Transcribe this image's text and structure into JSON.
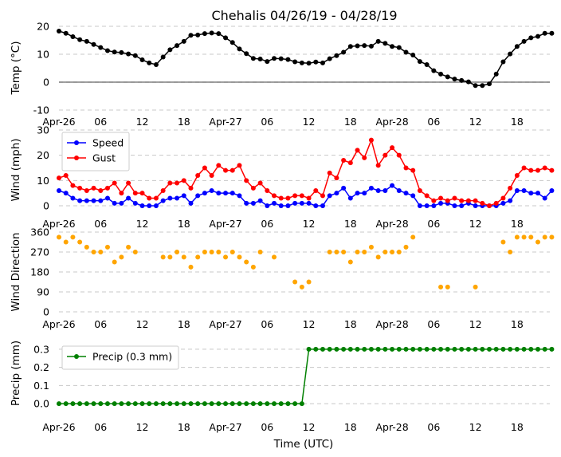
{
  "title": "Chehalis 04/26/19 - 04/28/19",
  "xlabel": "Time (UTC)",
  "x_tick_labels": [
    "Apr-26",
    "06",
    "12",
    "18",
    "Apr-27",
    "06",
    "12",
    "18",
    "Apr-28",
    "06",
    "12",
    "18"
  ],
  "chart_data": [
    {
      "type": "line",
      "name": "temperature",
      "ylabel": "Temp (°C)",
      "x_unit": "hours since Apr-26 00 UTC",
      "ylim": [
        -10,
        20
      ],
      "yticks": [
        "-10",
        "0",
        "10",
        "20"
      ],
      "zero_line": true,
      "grid": true,
      "series": [
        {
          "name": "Temp",
          "color": "#000000",
          "values": [
            18.3,
            17.5,
            16.3,
            15.2,
            14.6,
            13.5,
            12.4,
            11.3,
            10.8,
            10.6,
            10.1,
            9.5,
            8.0,
            6.9,
            6.3,
            9.0,
            11.6,
            13.1,
            14.6,
            16.8,
            16.9,
            17.4,
            17.6,
            17.4,
            15.9,
            14.2,
            11.9,
            10.2,
            8.5,
            8.3,
            7.4,
            8.5,
            8.4,
            8.1,
            7.3,
            6.9,
            6.8,
            7.2,
            6.9,
            8.4,
            9.5,
            10.7,
            12.8,
            13.0,
            13.1,
            12.9,
            14.6,
            13.9,
            12.8,
            12.4,
            10.7,
            9.7,
            7.4,
            6.3,
            4.1,
            2.9,
            1.9,
            1.1,
            0.6,
            0.1,
            -1.2,
            -1.2,
            -0.6,
            2.9,
            7.3,
            10.1,
            12.8,
            14.6,
            15.9,
            16.4,
            17.5,
            17.5
          ]
        }
      ]
    },
    {
      "type": "line",
      "name": "wind",
      "ylabel": "Wind (mph)",
      "ylim": [
        0,
        30
      ],
      "yticks": [
        "0",
        "10",
        "20",
        "30"
      ],
      "grid": true,
      "legend": "top-left",
      "series": [
        {
          "name": "Speed",
          "color": "#0000ff",
          "values": [
            6,
            5,
            3,
            2,
            2,
            2,
            2,
            3,
            1,
            1,
            3,
            1,
            0,
            0,
            0,
            2,
            3,
            3,
            4,
            1,
            4,
            5,
            6,
            5,
            5,
            5,
            4,
            1,
            1,
            2,
            0,
            1,
            0,
            0,
            1,
            1,
            1,
            0,
            0,
            4,
            5,
            7,
            3,
            5,
            5,
            7,
            6,
            6,
            8,
            6,
            5,
            4,
            0,
            0,
            0,
            1,
            1,
            0,
            0,
            1,
            0,
            0,
            0,
            0,
            1,
            2,
            6,
            6,
            5,
            5,
            3,
            6
          ]
        },
        {
          "name": "Gust",
          "color": "#ff0000",
          "values": [
            11,
            12,
            8,
            7,
            6,
            7,
            6,
            7,
            9,
            5,
            9,
            5,
            5,
            3,
            3,
            6,
            9,
            9,
            10,
            7,
            12,
            15,
            12,
            16,
            14,
            14,
            16,
            10,
            7,
            9,
            6,
            4,
            3,
            3,
            4,
            4,
            3,
            6,
            4,
            13,
            11,
            18,
            17,
            22,
            19,
            26,
            16,
            20,
            23,
            20,
            15,
            14,
            6,
            4,
            2,
            3,
            2,
            3,
            2,
            2,
            2,
            1,
            0,
            1,
            3,
            7,
            12,
            15,
            14,
            14,
            15,
            14
          ]
        }
      ]
    },
    {
      "type": "scatter",
      "name": "wind-direction",
      "ylabel": "Wind Direction",
      "ylim": [
        0,
        360
      ],
      "yticks": [
        "0",
        "90",
        "180",
        "270",
        "360"
      ],
      "grid": true,
      "series": [
        {
          "name": "Direction",
          "color": "#ffa500",
          "values": [
            337,
            315,
            337,
            315,
            292,
            270,
            270,
            292,
            225,
            247,
            292,
            270,
            null,
            null,
            null,
            247,
            247,
            270,
            247,
            202,
            247,
            270,
            270,
            270,
            247,
            270,
            247,
            225,
            202,
            270,
            null,
            247,
            null,
            null,
            135,
            112,
            135,
            null,
            null,
            270,
            270,
            270,
            225,
            270,
            270,
            292,
            247,
            270,
            270,
            270,
            292,
            337,
            null,
            null,
            null,
            112,
            112,
            null,
            null,
            null,
            112,
            null,
            null,
            null,
            315,
            270,
            337,
            337,
            337,
            315,
            337,
            337
          ]
        }
      ]
    },
    {
      "type": "line",
      "name": "precipitation",
      "ylabel": "Precip (mm)",
      "ylim": [
        -0.03,
        0.33
      ],
      "yticks": [
        "0.0",
        "0.1",
        "0.2",
        "0.3"
      ],
      "grid": true,
      "legend": "top-left",
      "series": [
        {
          "name": "Precip (0.3 mm)",
          "color": "#008000",
          "values": [
            0,
            0,
            0,
            0,
            0,
            0,
            0,
            0,
            0,
            0,
            0,
            0,
            0,
            0,
            0,
            0,
            0,
            0,
            0,
            0,
            0,
            0,
            0,
            0,
            0,
            0,
            0,
            0,
            0,
            0,
            0,
            0,
            0,
            0,
            0,
            0,
            0.3,
            0.3,
            0.3,
            0.3,
            0.3,
            0.3,
            0.3,
            0.3,
            0.3,
            0.3,
            0.3,
            0.3,
            0.3,
            0.3,
            0.3,
            0.3,
            0.3,
            0.3,
            0.3,
            0.3,
            0.3,
            0.3,
            0.3,
            0.3,
            0.3,
            0.3,
            0.3,
            0.3,
            0.3,
            0.3,
            0.3,
            0.3,
            0.3,
            0.3,
            0.3,
            0.3
          ]
        }
      ]
    }
  ]
}
